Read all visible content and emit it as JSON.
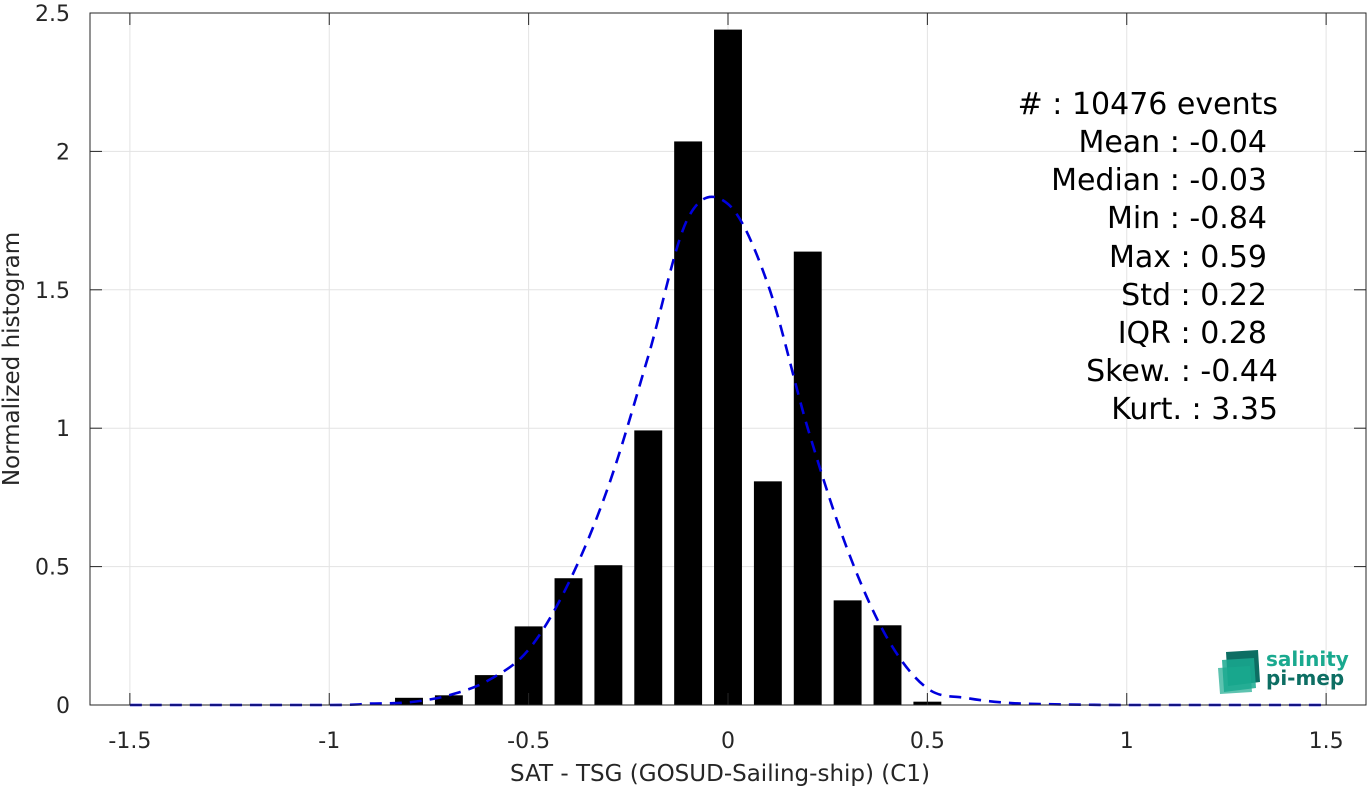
{
  "chart_data": {
    "type": "bar",
    "xlabel": "SAT - TSG (GOSUD-Sailing-ship) (C1)",
    "ylabel": "Normalized histogram",
    "xlim": [
      -1.6,
      1.6
    ],
    "ylim": [
      0,
      2.5
    ],
    "xticks": [
      -1.5,
      -1,
      -0.5,
      0,
      0.5,
      1,
      1.5
    ],
    "xtick_labels": [
      "-1.5",
      "-1",
      "-0.5",
      "0",
      "0.5",
      "1",
      "1.5"
    ],
    "yticks": [
      0,
      0.5,
      1,
      1.5,
      2,
      2.5
    ],
    "ytick_labels": [
      "0",
      "0.5",
      "1",
      "1.5",
      "2",
      "2.5"
    ],
    "grid": true,
    "bar_color": "#000000",
    "bar_width": 0.07,
    "bars": [
      {
        "x": -0.8,
        "value": 0.026
      },
      {
        "x": -0.7,
        "value": 0.035
      },
      {
        "x": -0.6,
        "value": 0.108
      },
      {
        "x": -0.5,
        "value": 0.284
      },
      {
        "x": -0.4,
        "value": 0.458
      },
      {
        "x": -0.3,
        "value": 0.505
      },
      {
        "x": -0.2,
        "value": 0.992
      },
      {
        "x": -0.1,
        "value": 2.036
      },
      {
        "x": 0.0,
        "value": 2.44
      },
      {
        "x": 0.1,
        "value": 0.808
      },
      {
        "x": 0.2,
        "value": 1.638
      },
      {
        "x": 0.3,
        "value": 0.378
      },
      {
        "x": 0.4,
        "value": 0.288
      },
      {
        "x": 0.5,
        "value": 0.012
      }
    ],
    "fit_curve": {
      "color": "#0000dd",
      "style": "dashed",
      "x": [
        -1.5,
        -1.0,
        -0.9,
        -0.8,
        -0.7,
        -0.6,
        -0.5,
        -0.4,
        -0.3,
        -0.2,
        -0.1,
        0.0,
        0.1,
        0.2,
        0.3,
        0.4,
        0.5,
        0.6,
        0.7,
        0.8,
        0.9,
        1.0,
        1.5
      ],
      "y": [
        0.0,
        0.0,
        0.005,
        0.01,
        0.035,
        0.09,
        0.2,
        0.44,
        0.79,
        1.26,
        1.76,
        1.81,
        1.52,
        1.0,
        0.56,
        0.24,
        0.06,
        0.025,
        0.008,
        0.003,
        0.001,
        0.0,
        0.0
      ]
    }
  },
  "stats": [
    {
      "text": "#  : 10476 events"
    },
    {
      "text": "Mean : -0.04"
    },
    {
      "text": "Median : -0.03"
    },
    {
      "text": "Min : -0.84"
    },
    {
      "text": "Max : 0.59"
    },
    {
      "text": "Std : 0.22"
    },
    {
      "text": "IQR : 0.28"
    },
    {
      "text": "Skew. : -0.44"
    },
    {
      "text": "Kurt. : 3.35"
    }
  ],
  "logo": {
    "line1": "salinity",
    "line2": "pi-mep",
    "color_top": "#1aa98f",
    "color_bottom": "#0d6e63"
  }
}
